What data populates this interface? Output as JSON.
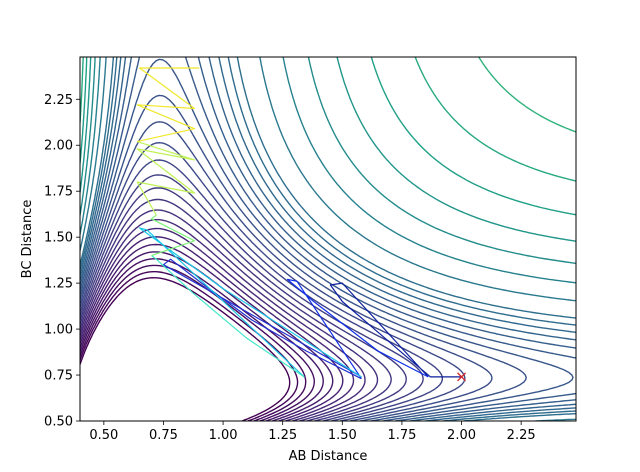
{
  "chart_data": {
    "type": "contour",
    "xlabel": "AB Distance",
    "ylabel": "BC Distance",
    "xlim": [
      0.4,
      2.48
    ],
    "ylim": [
      0.5,
      2.48
    ],
    "xticks": [
      0.5,
      0.75,
      1.0,
      1.25,
      1.5,
      1.75,
      2.0,
      2.25
    ],
    "xtick_labels": [
      "0.50",
      "0.75",
      "1.00",
      "1.25",
      "1.50",
      "1.75",
      "2.00",
      "2.25"
    ],
    "yticks": [
      0.5,
      0.75,
      1.0,
      1.25,
      1.5,
      1.75,
      2.0,
      2.25
    ],
    "ytick_labels": [
      "0.50",
      "0.75",
      "1.00",
      "1.25",
      "1.50",
      "1.75",
      "2.00",
      "2.25"
    ],
    "colormap": "viridis",
    "grid": false,
    "surface": {
      "description_of_levels": "potential energy contours of an A-B-C collinear system (LEPS-like)",
      "ab_equilibrium": 0.74,
      "bc_equilibrium": 0.74,
      "contour_levels": [
        -4.6,
        -4.4,
        -4.2,
        -4.0,
        -3.8,
        -3.6,
        -3.4,
        -3.2,
        -3.0,
        -2.8,
        -2.6,
        -2.4,
        -2.2,
        -2.0,
        -1.8,
        -1.6,
        -1.4,
        -1.2,
        -1.0,
        -0.8,
        -0.6,
        -0.4,
        -0.2,
        0.0,
        0.5,
        1.0,
        1.5,
        2.0,
        2.5,
        3.0,
        3.5,
        4.0,
        5.0,
        6.0,
        7.0,
        8.0
      ]
    },
    "trajectories": [
      {
        "color": "#0d1f9e",
        "points": [
          [
            2.0,
            0.74
          ],
          [
            1.87,
            0.74
          ],
          [
            1.76,
            0.86
          ],
          [
            1.5,
            1.15
          ],
          [
            1.45,
            1.24
          ],
          [
            1.5,
            1.25
          ],
          [
            1.86,
            0.74
          ]
        ]
      },
      {
        "color": "#1030e8",
        "points": [
          [
            1.86,
            0.74
          ],
          [
            1.65,
            0.88
          ],
          [
            1.38,
            1.15
          ],
          [
            1.27,
            1.27
          ],
          [
            1.31,
            1.26
          ],
          [
            1.58,
            0.73
          ]
        ]
      },
      {
        "color": "#2230d0",
        "points": [
          [
            1.58,
            0.73
          ],
          [
            1.35,
            0.88
          ],
          [
            1.12,
            1.05
          ],
          [
            0.91,
            1.25
          ],
          [
            0.78,
            1.38
          ],
          [
            0.75,
            1.35
          ],
          [
            1.58,
            0.74
          ]
        ]
      },
      {
        "color": "#19c7e8",
        "points": [
          [
            1.58,
            0.74
          ],
          [
            1.0,
            1.22
          ],
          [
            0.65,
            1.55
          ],
          [
            0.68,
            1.54
          ],
          [
            1.34,
            0.74
          ]
        ]
      },
      {
        "color": "#40e8c8",
        "points": [
          [
            1.34,
            0.74
          ],
          [
            1.1,
            0.95
          ],
          [
            0.87,
            1.2
          ],
          [
            0.72,
            1.38
          ],
          [
            0.7,
            1.4
          ]
        ]
      },
      {
        "color": "#7ff27a",
        "points": [
          [
            0.7,
            1.4
          ],
          [
            0.88,
            1.48
          ],
          [
            0.7,
            1.6
          ],
          [
            0.72,
            1.62
          ]
        ]
      },
      {
        "color": "#bff255",
        "points": [
          [
            0.72,
            1.62
          ],
          [
            0.64,
            1.8
          ],
          [
            0.88,
            1.74
          ],
          [
            0.64,
            1.98
          ],
          [
            0.88,
            1.92
          ],
          [
            0.64,
            2.02
          ]
        ]
      },
      {
        "color": "#f0e829",
        "points": [
          [
            0.64,
            2.02
          ],
          [
            0.88,
            2.09
          ],
          [
            0.64,
            2.22
          ],
          [
            0.88,
            2.2
          ],
          [
            0.65,
            2.42
          ],
          [
            0.9,
            2.42
          ]
        ]
      }
    ],
    "marker": {
      "symbol": "x",
      "color": "#d62728",
      "x": 2.0,
      "y": 0.74
    }
  }
}
